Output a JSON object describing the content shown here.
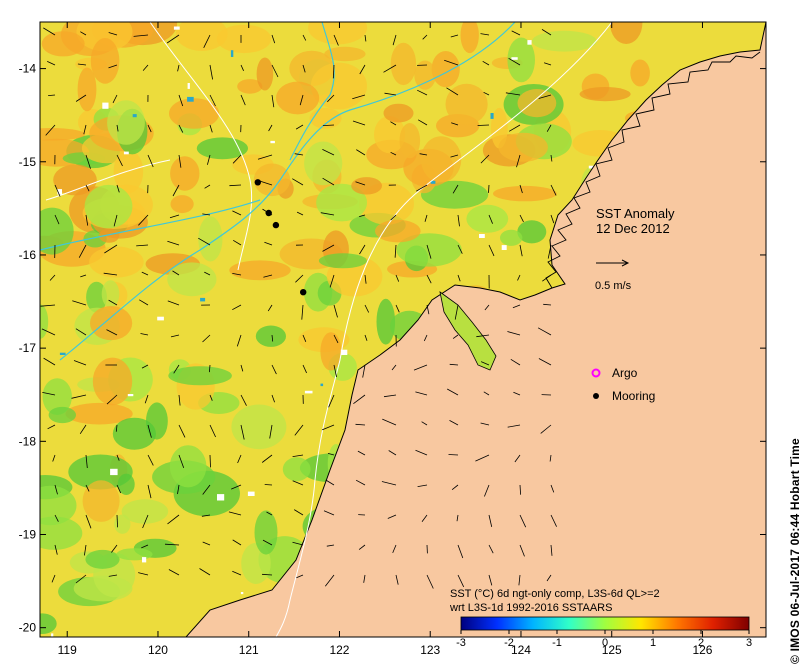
{
  "map": {
    "title": "SST Anomaly",
    "date": "12 Dec 2012",
    "vector_scale_label": "0.5 m/s",
    "legend": {
      "argo_label": "Argo",
      "mooring_label": "Mooring"
    },
    "colorbar": {
      "caption_line1": "SST (°C) 6d ngt-only comp, L3S-6d QL>=2",
      "caption_line2": "wrt L3S-1d 1992-2016 SSTAARS",
      "ticks": [
        "-3",
        "-2",
        "-1",
        "0",
        "1",
        "2",
        "3"
      ],
      "min": -3,
      "max": 3,
      "colors": [
        "#00007f",
        "#0030ff",
        "#00b4ff",
        "#30ffc8",
        "#a0ff40",
        "#ffe600",
        "#ff7800",
        "#e02000",
        "#7f0000"
      ]
    },
    "x_ticks": [
      "119",
      "120",
      "121",
      "122",
      "123",
      "124",
      "125",
      "126"
    ],
    "y_ticks": [
      "-14",
      "-15",
      "-16",
      "-17",
      "-18",
      "-19",
      "-20"
    ],
    "x_range": [
      118.7,
      126.7
    ],
    "y_range": [
      -20.1,
      -13.5
    ],
    "credit": "© IMOS 06-Jul-2017 06:44 Hobart Time",
    "colors": {
      "land": "#f8c8a0",
      "sea_base": "#ecdc3c",
      "coast": "#000000",
      "isobath_white": "#ffffff",
      "isobath_cyan": "#40c8d8",
      "argo": "#ff00ff",
      "mooring": "#000000"
    },
    "moorings": [
      {
        "lon": 121.1,
        "lat": -15.22
      },
      {
        "lon": 121.22,
        "lat": -15.55
      },
      {
        "lon": 121.3,
        "lat": -15.68
      },
      {
        "lon": 121.6,
        "lat": -16.4
      }
    ]
  }
}
